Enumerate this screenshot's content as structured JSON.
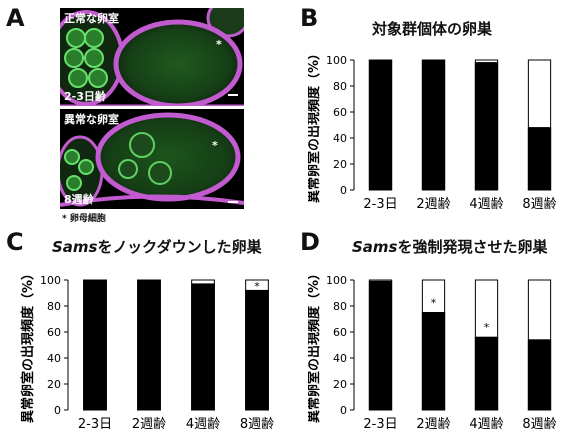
{
  "panel_a": {
    "letter": "A",
    "image_top": {
      "label": "正常な卵室",
      "age": "2-3日齢",
      "asterisk": "*"
    },
    "image_bottom": {
      "label": "異常な卵室",
      "age": "8週齢",
      "asterisk": "*"
    },
    "legend": "* 卵母細胞"
  },
  "panel_b": {
    "letter": "B",
    "title": "対象群個体の卵巣",
    "y_label": "異常卵室の出現頻度（%）"
  },
  "panel_c": {
    "letter": "C",
    "title_italic": "Sams",
    "title_rest": "をノックダウンした卵巣",
    "y_label": "異常卵室の出現頻度（%）"
  },
  "panel_d": {
    "letter": "D",
    "title_italic": "Sams",
    "title_rest": "を強制発現させた卵巣",
    "y_label": "異常卵室の出現頻度（%）"
  },
  "chart_data": [
    {
      "type": "bar",
      "panel": "B",
      "categories": [
        "2-3日",
        "2週齢",
        "4週齢",
        "8週齢"
      ],
      "values": [
        100,
        100,
        98,
        48
      ],
      "significance": [
        "",
        "",
        "",
        ""
      ],
      "ylim": [
        0,
        100
      ],
      "yticks": [
        0,
        20,
        40,
        60,
        80,
        100
      ],
      "colors": {
        "normal": "#000000",
        "abnormal": "#ffffff"
      }
    },
    {
      "type": "bar",
      "panel": "C",
      "categories": [
        "2-3日",
        "2週齢",
        "4週齢",
        "8週齢"
      ],
      "values": [
        100,
        100,
        97,
        92
      ],
      "significance": [
        "",
        "",
        "",
        "*"
      ],
      "ylim": [
        0,
        100
      ],
      "yticks": [
        0,
        20,
        40,
        60,
        80,
        100
      ],
      "colors": {
        "normal": "#000000",
        "abnormal": "#ffffff"
      }
    },
    {
      "type": "bar",
      "panel": "D",
      "categories": [
        "2-3日",
        "2週齢",
        "4週齢",
        "8週齢"
      ],
      "values": [
        99,
        75,
        56,
        54
      ],
      "significance": [
        "",
        "*",
        "*",
        ""
      ],
      "ylim": [
        0,
        100
      ],
      "yticks": [
        0,
        20,
        40,
        60,
        80,
        100
      ],
      "colors": {
        "normal": "#000000",
        "abnormal": "#ffffff"
      }
    }
  ]
}
